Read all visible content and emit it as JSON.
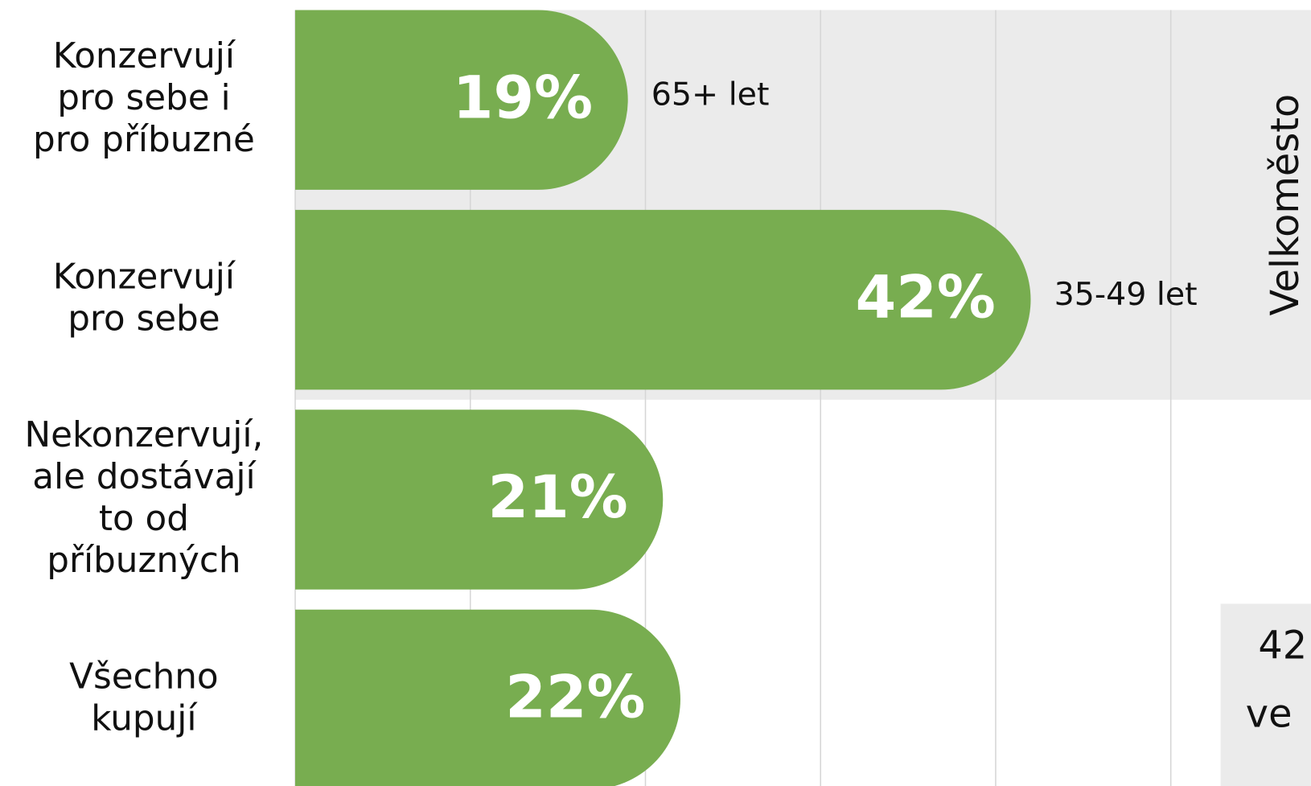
{
  "chart_data": {
    "type": "bar",
    "orientation": "horizontal",
    "categories": [
      [
        "Konzervují",
        "pro sebe i",
        "pro příbuzné"
      ],
      [
        "Konzervují",
        "pro sebe"
      ],
      [
        "Nekonzervují,",
        "ale dostávají",
        "to od",
        "příbuzných"
      ],
      [
        "Všechno",
        "kupují"
      ]
    ],
    "values": [
      19,
      42,
      21,
      22
    ],
    "value_labels": [
      "19%",
      "42%",
      "21%",
      "22%"
    ],
    "color": "#78ad50",
    "xlim": [
      0,
      58
    ],
    "xticks": [
      0,
      10,
      20,
      30,
      40,
      50
    ],
    "grid": true,
    "annotations": [
      "65+ let",
      "35-49 let"
    ],
    "side_label": "Velkoměsto",
    "box_text": [
      "42",
      "ve"
    ]
  }
}
